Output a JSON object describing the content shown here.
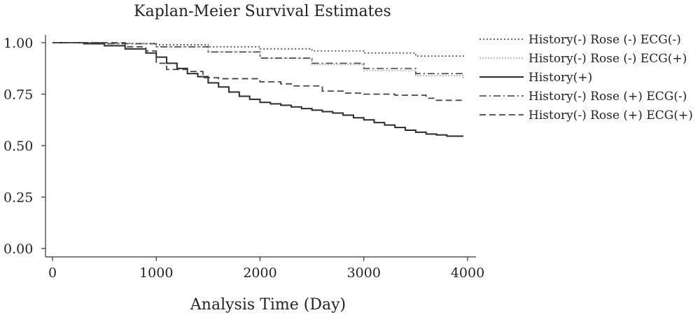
{
  "chart_data": {
    "type": "line",
    "title": "Kaplan-Meier Survival Estimates",
    "xlabel": "Analysis Time (Day)",
    "ylabel": "",
    "xlim": [
      0,
      4000
    ],
    "ylim": [
      0,
      1.0
    ],
    "xticks": [
      "0",
      "1000",
      "2000",
      "3000",
      "4000"
    ],
    "yticks": [
      "0.00",
      "0.25",
      "0.50",
      "0.75",
      "1.00"
    ],
    "grid": false,
    "legend_position": "right",
    "series": [
      {
        "name": "History(-) Rose (-) ECG(-)",
        "style": "dotted",
        "color": "#555555",
        "x": [
          0,
          500,
          1000,
          1500,
          2000,
          2500,
          3000,
          3500,
          3960
        ],
        "y": [
          1.0,
          0.997,
          0.99,
          0.98,
          0.97,
          0.96,
          0.95,
          0.935,
          0.925
        ]
      },
      {
        "name": "History(-) Rose (-) ECG(+)",
        "style": "dotted-light",
        "color": "#bdbdbd",
        "x": [
          0,
          500,
          1000,
          1500,
          2000,
          2500,
          3000,
          3500,
          3960
        ],
        "y": [
          1.0,
          0.995,
          0.98,
          0.955,
          0.925,
          0.895,
          0.865,
          0.84,
          0.825
        ]
      },
      {
        "name": "History(+)",
        "style": "solid",
        "color": "#2b2b2b",
        "x": [
          0,
          300,
          500,
          700,
          900,
          1000,
          1100,
          1200,
          1300,
          1400,
          1500,
          1600,
          1700,
          1800,
          1900,
          2000,
          2100,
          2200,
          2300,
          2400,
          2500,
          2600,
          2700,
          2800,
          2900,
          3000,
          3100,
          3200,
          3300,
          3400,
          3500,
          3600,
          3700,
          3800,
          3960
        ],
        "y": [
          1.0,
          0.995,
          0.985,
          0.97,
          0.95,
          0.93,
          0.9,
          0.875,
          0.85,
          0.835,
          0.805,
          0.785,
          0.76,
          0.74,
          0.725,
          0.71,
          0.703,
          0.696,
          0.688,
          0.68,
          0.672,
          0.665,
          0.658,
          0.648,
          0.635,
          0.625,
          0.612,
          0.6,
          0.588,
          0.575,
          0.565,
          0.556,
          0.552,
          0.546,
          0.546
        ]
      },
      {
        "name": "History(-) Rose (+) ECG(-)",
        "style": "dash-dot",
        "color": "#555555",
        "x": [
          0,
          500,
          1000,
          1500,
          2000,
          2500,
          3000,
          3500,
          3960
        ],
        "y": [
          1.0,
          0.995,
          0.98,
          0.955,
          0.925,
          0.9,
          0.875,
          0.85,
          0.84
        ]
      },
      {
        "name": "History(-) Rose (+) ECG(+)",
        "style": "dashed",
        "color": "#444444",
        "x": [
          0,
          500,
          700,
          900,
          1000,
          1100,
          1300,
          1450,
          1600,
          2000,
          2200,
          2300,
          2600,
          2800,
          3000,
          3300,
          3600,
          3700,
          3960
        ],
        "y": [
          1.0,
          1.0,
          0.98,
          0.96,
          0.9,
          0.87,
          0.86,
          0.83,
          0.825,
          0.81,
          0.8,
          0.79,
          0.765,
          0.755,
          0.75,
          0.745,
          0.73,
          0.72,
          0.72
        ]
      }
    ]
  }
}
